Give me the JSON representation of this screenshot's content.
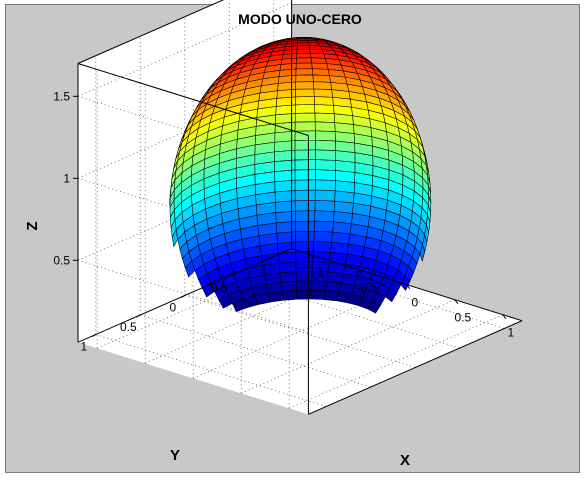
{
  "figure": {
    "background": "#c8c8c8",
    "axes_background": "#ffffff"
  },
  "chart_data": {
    "type": "surface",
    "title": "MODO UNO-CERO",
    "xlabel": "X",
    "ylabel": "Y",
    "zlabel": "Z",
    "xlim": [
      -1.2,
      1.2
    ],
    "ylim": [
      -1.2,
      1.2
    ],
    "zlim": [
      0,
      1.7
    ],
    "xticks": [
      -1,
      -0.5,
      0,
      0.5,
      1
    ],
    "xtick_labels": [
      "-1",
      "-0.5",
      "0",
      "0.5",
      "1"
    ],
    "yticks": [
      1,
      0.5,
      0,
      -0.5,
      -1
    ],
    "ytick_labels": [
      "1",
      "0.5",
      "0",
      "-0.5",
      "-1"
    ],
    "zticks": [
      0.5,
      1,
      1.5
    ],
    "ztick_labels": [
      "0.5",
      "1",
      "1.5"
    ],
    "grid": true,
    "box": true,
    "colormap": "jet",
    "view": {
      "azimuth": -37.5,
      "elevation": 30
    },
    "surface": {
      "shape": "dome (upper part of a sphere)",
      "radius": 1.0,
      "center_z": 0.75,
      "z_range": [
        0,
        1.75
      ],
      "mesh": {
        "theta_steps": 40,
        "phi_steps": 40
      },
      "edge_color": "#000000"
    }
  }
}
